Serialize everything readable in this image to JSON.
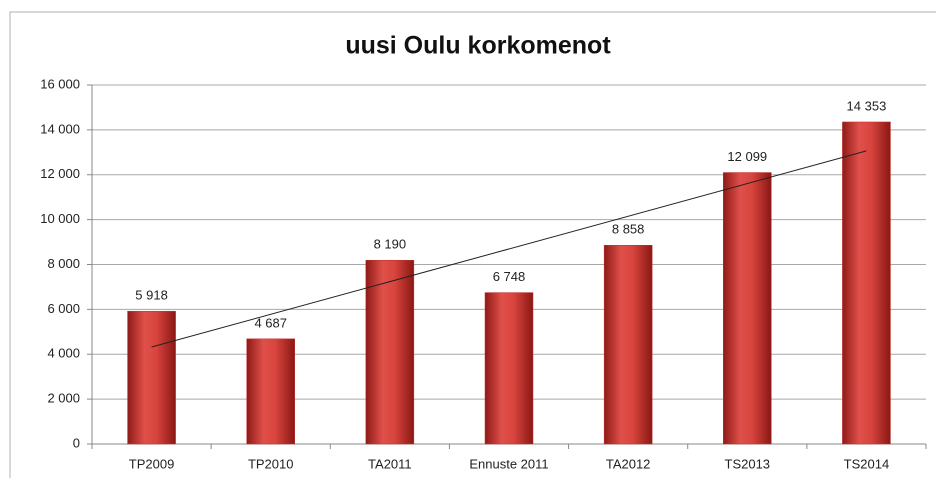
{
  "chart_data": {
    "type": "bar",
    "title": "uusi Oulu korkomenot",
    "categories": [
      "TP2009",
      "TP2010",
      "TA2011",
      "Ennuste 2011",
      "TA2012",
      "TS2013",
      "TS2014"
    ],
    "values": [
      5918,
      4687,
      8190,
      6748,
      8858,
      12099,
      14353
    ],
    "value_labels": [
      "5 918",
      "4 687",
      "8 190",
      "6 748",
      "8 858",
      "12 099",
      "14 353"
    ],
    "color": "#c0302c",
    "ylim": [
      0,
      16000
    ],
    "yticks": [
      0,
      {
        "value": 2000,
        "label": "2 000"
      },
      {
        "value": 4000,
        "label": "4 000"
      },
      {
        "value": 6000,
        "label": "6 000"
      },
      {
        "value": 8000,
        "label": "8 000"
      },
      {
        "value": 10000,
        "label": "10 000"
      },
      {
        "value": 12000,
        "label": "12 000"
      },
      {
        "value": 14000,
        "label": "14 000"
      },
      {
        "value": 16000,
        "label": "16 000"
      }
    ],
    "grid": true,
    "trendline": "linear"
  }
}
